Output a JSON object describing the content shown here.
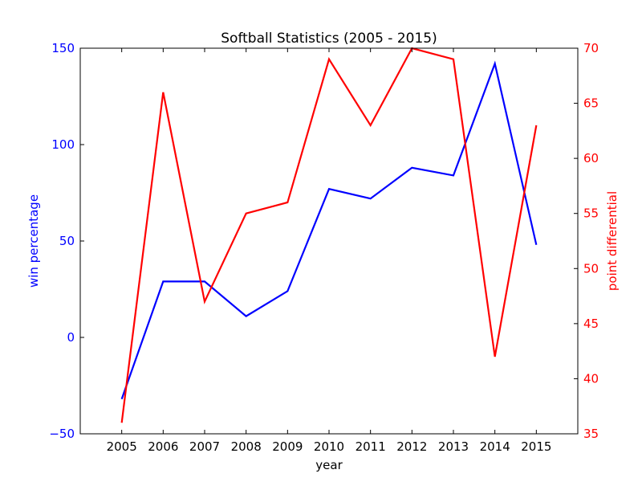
{
  "chart_data": {
    "type": "line",
    "title": "Softball Statistics (2005 - 2015)",
    "xlabel": "year",
    "x": [
      2005,
      2006,
      2007,
      2008,
      2009,
      2010,
      2011,
      2012,
      2013,
      2014,
      2015
    ],
    "xlim": [
      2004,
      2016
    ],
    "xticks": [
      "2005",
      "2006",
      "2007",
      "2008",
      "2009",
      "2010",
      "2011",
      "2012",
      "2013",
      "2014",
      "2015"
    ],
    "grid": false,
    "legend": "none",
    "left_axis": {
      "label": "win percentage",
      "color": "#0000ff",
      "ylim": [
        -50,
        150
      ],
      "ticks": [
        "−50",
        "0",
        "50",
        "100",
        "150"
      ],
      "tick_values": [
        -50,
        0,
        50,
        100,
        150
      ]
    },
    "right_axis": {
      "label": "point differential",
      "color": "#ff0000",
      "ylim": [
        35,
        70
      ],
      "ticks": [
        "35",
        "40",
        "45",
        "50",
        "55",
        "60",
        "65",
        "70"
      ],
      "tick_values": [
        35,
        40,
        45,
        50,
        55,
        60,
        65,
        70
      ]
    },
    "series": [
      {
        "axis": "left",
        "color": "#0000ff",
        "values": [
          -32,
          29,
          29,
          11,
          24,
          77,
          72,
          88,
          84,
          142,
          48
        ]
      },
      {
        "axis": "right",
        "color": "#ff0000",
        "values": [
          36,
          66,
          47,
          55,
          56,
          69,
          63,
          70,
          69,
          42,
          63
        ]
      }
    ]
  }
}
